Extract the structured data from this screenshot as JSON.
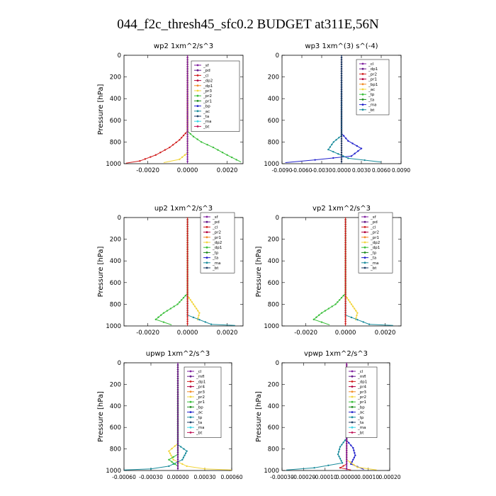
{
  "figure_title": "044_f2c_thresh45_sfc0.2  BUDGET at311E,56N",
  "colors": {
    "purple": "#7f1f9f",
    "darkpurple": "#66198c",
    "red": "#d11f1f",
    "orange": "#f28c28",
    "yellow": "#f2d53c",
    "green": "#3bbf3b",
    "darkgreen": "#1f8c1f",
    "blue": "#2222cc",
    "teal": "#1a8c9c",
    "navy": "#1f3f66",
    "cyan": "#3cd6e6",
    "magenta": "#c2185b",
    "crimson": "#b3003c"
  },
  "chart_data": [
    {
      "type": "line",
      "title": "wp2   1xm^2/s^3",
      "ylabel": "Pressure [hPa]",
      "xlim": [
        -0.0032,
        0.0028
      ],
      "ylim": [
        1000,
        0
      ],
      "xticks": [
        -0.002,
        0.0,
        0.002
      ],
      "xticklabels": [
        "-0.0020",
        "0.0000",
        "0.0020"
      ],
      "yticks": [
        0,
        200,
        400,
        600,
        800,
        1000
      ],
      "legend": [
        "_sf",
        "_pd",
        "_cl",
        "_dp2",
        "_dp1",
        "_pr3",
        "_pr2",
        "_pr1",
        "_bp",
        "_ac",
        "_ta",
        "_ma",
        "_bt"
      ],
      "series": [
        {
          "name": "_bp",
          "color": "green",
          "points": [
            [
              0,
              0
            ],
            [
              0,
              700
            ],
            [
              0.0003,
              750
            ],
            [
              0.0007,
              800
            ],
            [
              0.0013,
              850
            ],
            [
              0.002,
              920
            ],
            [
              0.0027,
              985
            ]
          ]
        },
        {
          "name": "_pr1",
          "color": "red",
          "points": [
            [
              0,
              0
            ],
            [
              0,
              700
            ],
            [
              -0.0004,
              780
            ],
            [
              -0.0009,
              850
            ],
            [
              -0.0016,
              920
            ],
            [
              -0.0024,
              975
            ],
            [
              -0.0031,
              995
            ]
          ]
        },
        {
          "name": "_pr2",
          "color": "yellow",
          "points": [
            [
              0,
              0
            ],
            [
              0,
              900
            ],
            [
              -0.0004,
              960
            ],
            [
              -0.0012,
              990
            ]
          ]
        },
        {
          "name": "_pd",
          "color": "purple",
          "points": [
            [
              0,
              0
            ],
            [
              0,
              1000
            ]
          ]
        }
      ]
    },
    {
      "type": "line",
      "title": "wp3   1xm^(3) s^(-4)",
      "ylabel": "",
      "xlim": [
        -0.009,
        0.009
      ],
      "ylim": [
        1000,
        0
      ],
      "xticks": [
        -0.009,
        -0.006,
        -0.003,
        0.0,
        0.003,
        0.006,
        0.009
      ],
      "xticklabels": [
        "-0.0090",
        "-0.0060",
        "-0.0030",
        "0.0000",
        "0.0030",
        "0.0060",
        "0.0090"
      ],
      "yticks": [
        0,
        200,
        400,
        600,
        800,
        1000
      ],
      "legend": [
        "_cl",
        "_dp1",
        "_pr2",
        "_pr1",
        "_bp1",
        "_ac",
        "_tp",
        "_ta",
        "_ma",
        "_bt"
      ],
      "series": [
        {
          "name": "_tp",
          "color": "blue",
          "points": [
            [
              0,
              0
            ],
            [
              0,
              720
            ],
            [
              0.001,
              790
            ],
            [
              0.003,
              860
            ],
            [
              0.0015,
              930
            ],
            [
              -0.004,
              965
            ],
            [
              -0.0085,
              990
            ]
          ]
        },
        {
          "name": "_ta",
          "color": "teal",
          "points": [
            [
              0,
              0
            ],
            [
              0,
              740
            ],
            [
              -0.0012,
              800
            ],
            [
              -0.002,
              870
            ],
            [
              0.001,
              950
            ],
            [
              0.006,
              985
            ]
          ]
        },
        {
          "name": "_cl",
          "color": "red",
          "points": [
            [
              0,
              0
            ],
            [
              0,
              1000
            ]
          ]
        },
        {
          "name": "_bt",
          "color": "navy",
          "points": [
            [
              0,
              0
            ],
            [
              0,
              1000
            ]
          ]
        }
      ]
    },
    {
      "type": "line",
      "title": "up2   1xm^2/s^3",
      "ylabel": "Pressure [hPa]",
      "xlim": [
        -0.0032,
        0.0028
      ],
      "ylim": [
        1000,
        0
      ],
      "xticks": [
        -0.002,
        0.0,
        0.002
      ],
      "xticklabels": [
        "-0.0020",
        "0.0000",
        "0.0020"
      ],
      "yticks": [
        0,
        200,
        400,
        600,
        800,
        1000
      ],
      "legend": [
        "_sf",
        "_pd",
        "_cl",
        "_pr2",
        "_pr1",
        "_dp2",
        "_dp1",
        "_tp",
        "_ta",
        "_ma",
        "_bt"
      ],
      "series": [
        {
          "name": "_dp2",
          "color": "green",
          "points": [
            [
              0,
              0
            ],
            [
              0,
              700
            ],
            [
              -0.0005,
              800
            ],
            [
              -0.0012,
              880
            ],
            [
              -0.0016,
              940
            ],
            [
              -0.0008,
              990
            ]
          ]
        },
        {
          "name": "_pr1",
          "color": "yellow",
          "points": [
            [
              0,
              0
            ],
            [
              0,
              720
            ],
            [
              0.0003,
              800
            ],
            [
              0.0006,
              880
            ],
            [
              0.0005,
              950
            ]
          ]
        },
        {
          "name": "_tp",
          "color": "teal",
          "points": [
            [
              0,
              0
            ],
            [
              0,
              900
            ],
            [
              0.0012,
              985
            ],
            [
              0.0024,
              995
            ]
          ]
        },
        {
          "name": "_cl",
          "color": "red",
          "points": [
            [
              0,
              0
            ],
            [
              0,
              1000
            ]
          ]
        }
      ]
    },
    {
      "type": "line",
      "title": "vp2   1xm^2/s^3",
      "ylabel": "Pressure [hPa]",
      "xlim": [
        -0.0032,
        0.0028
      ],
      "ylim": [
        1000,
        0
      ],
      "xticks": [
        -0.002,
        0.0,
        0.002
      ],
      "xticklabels": [
        "-0.0020",
        "0.0000",
        "0.0020"
      ],
      "yticks": [
        0,
        200,
        400,
        600,
        800,
        1000
      ],
      "legend": [
        "_sf",
        "_pd",
        "_cl",
        "_pr2",
        "_pr1",
        "_dp2",
        "_dp1",
        "_tp",
        "_ta",
        "_ma",
        "_bt"
      ],
      "series": [
        {
          "name": "_dp2",
          "color": "green",
          "points": [
            [
              0,
              0
            ],
            [
              0,
              700
            ],
            [
              -0.0005,
              800
            ],
            [
              -0.0012,
              880
            ],
            [
              -0.0016,
              940
            ],
            [
              -0.0008,
              990
            ]
          ]
        },
        {
          "name": "_pr1",
          "color": "yellow",
          "points": [
            [
              0,
              0
            ],
            [
              0,
              720
            ],
            [
              0.0003,
              800
            ],
            [
              0.0006,
              880
            ],
            [
              0.0005,
              950
            ]
          ]
        },
        {
          "name": "_tp",
          "color": "teal",
          "points": [
            [
              0,
              0
            ],
            [
              0,
              900
            ],
            [
              0.0012,
              985
            ],
            [
              0.0024,
              995
            ]
          ]
        },
        {
          "name": "_cl",
          "color": "red",
          "points": [
            [
              0,
              0
            ],
            [
              0,
              1000
            ]
          ]
        }
      ]
    },
    {
      "type": "line",
      "title": "upwp   1xm^2/s^3",
      "ylabel": "Pressure [hPa]",
      "xlim": [
        -0.0006,
        0.0006
      ],
      "ylim": [
        1000,
        0
      ],
      "xticks": [
        -0.0006,
        -0.0003,
        0.0,
        0.0003,
        0.0006
      ],
      "xticklabels": [
        "-0.00060",
        "-0.00030",
        "0.00000",
        "0.00030",
        "0.00060"
      ],
      "yticks": [
        0,
        200,
        400,
        600,
        800,
        1000
      ],
      "legend": [
        "_cl",
        "_mfl",
        "_dp1",
        "_pr4",
        "_pr3",
        "_pr2",
        "_pr1",
        "_bp",
        "_ac",
        "_tp",
        "_ta",
        "_ma",
        "_bt"
      ],
      "series": [
        {
          "name": "_pr1",
          "color": "yellow",
          "points": [
            [
              0,
              0
            ],
            [
              0,
              750
            ],
            [
              -0.0001,
              820
            ],
            [
              -5e-05,
              900
            ],
            [
              0.0001,
              960
            ],
            [
              0.0003,
              985
            ],
            [
              0.0006,
              995
            ]
          ]
        },
        {
          "name": "_tp",
          "color": "teal",
          "points": [
            [
              0,
              0
            ],
            [
              0,
              760
            ],
            [
              0.0001,
              820
            ],
            [
              5e-05,
              900
            ],
            [
              -0.0001,
              960
            ],
            [
              -0.0003,
              985
            ],
            [
              -0.0006,
              995
            ]
          ]
        },
        {
          "name": "_ac",
          "color": "green",
          "points": [
            [
              0,
              0
            ],
            [
              0,
              850
            ],
            [
              -0.0001,
              900
            ],
            [
              0,
              960
            ]
          ]
        },
        {
          "name": "_cl",
          "color": "crimson",
          "points": [
            [
              0,
              0
            ],
            [
              0,
              1000
            ]
          ]
        },
        {
          "name": "_mfl",
          "color": "darkpurple",
          "points": [
            [
              0,
              0
            ],
            [
              0,
              1000
            ]
          ]
        }
      ]
    },
    {
      "type": "line",
      "title": "vpwp   1xm^2/s^3",
      "ylabel": "Pressure [hPa]",
      "xlim": [
        -0.0003,
        0.0002
      ],
      "ylim": [
        1000,
        0
      ],
      "xticks": [
        -0.0003,
        -0.0002,
        -0.0001,
        0.0,
        0.0001,
        0.0002
      ],
      "xticklabels": [
        "-0.00030",
        "-0.00020",
        "-0.00010",
        "0.00000",
        "0.00010",
        "0.00020"
      ],
      "yticks": [
        0,
        200,
        400,
        600,
        800,
        1000
      ],
      "legend": [
        "_cl",
        "_mfl",
        "_dp1",
        "_pr4",
        "_pr3",
        "_pr2",
        "_pr1",
        "_bp",
        "_ac",
        "_tp",
        "_ta",
        "_ma",
        "_bt"
      ],
      "series": [
        {
          "name": "_tp",
          "color": "teal",
          "points": [
            [
              0,
              0
            ],
            [
              0,
              700
            ],
            [
              -3e-05,
              780
            ],
            [
              -4e-05,
              850
            ],
            [
              -2e-05,
              930
            ],
            [
              -0.00015,
              975
            ],
            [
              -0.00028,
              995
            ]
          ]
        },
        {
          "name": "_ta",
          "color": "blue",
          "points": [
            [
              0,
              0
            ],
            [
              0,
              720
            ],
            [
              3e-05,
              790
            ],
            [
              4e-05,
              860
            ],
            [
              2e-05,
              940
            ],
            [
              8e-05,
              990
            ]
          ]
        },
        {
          "name": "_pr1",
          "color": "yellow",
          "points": [
            [
              0,
              0
            ],
            [
              0,
              900
            ],
            [
              5e-05,
              970
            ],
            [
              0.00014,
              995
            ]
          ]
        },
        {
          "name": "_pr3",
          "color": "red",
          "points": [
            [
              0,
              0
            ],
            [
              0,
              940
            ],
            [
              -3e-05,
              975
            ],
            [
              2e-05,
              995
            ]
          ]
        },
        {
          "name": "_cl",
          "color": "purple",
          "points": [
            [
              0,
              0
            ],
            [
              0,
              1000
            ]
          ]
        }
      ]
    }
  ]
}
